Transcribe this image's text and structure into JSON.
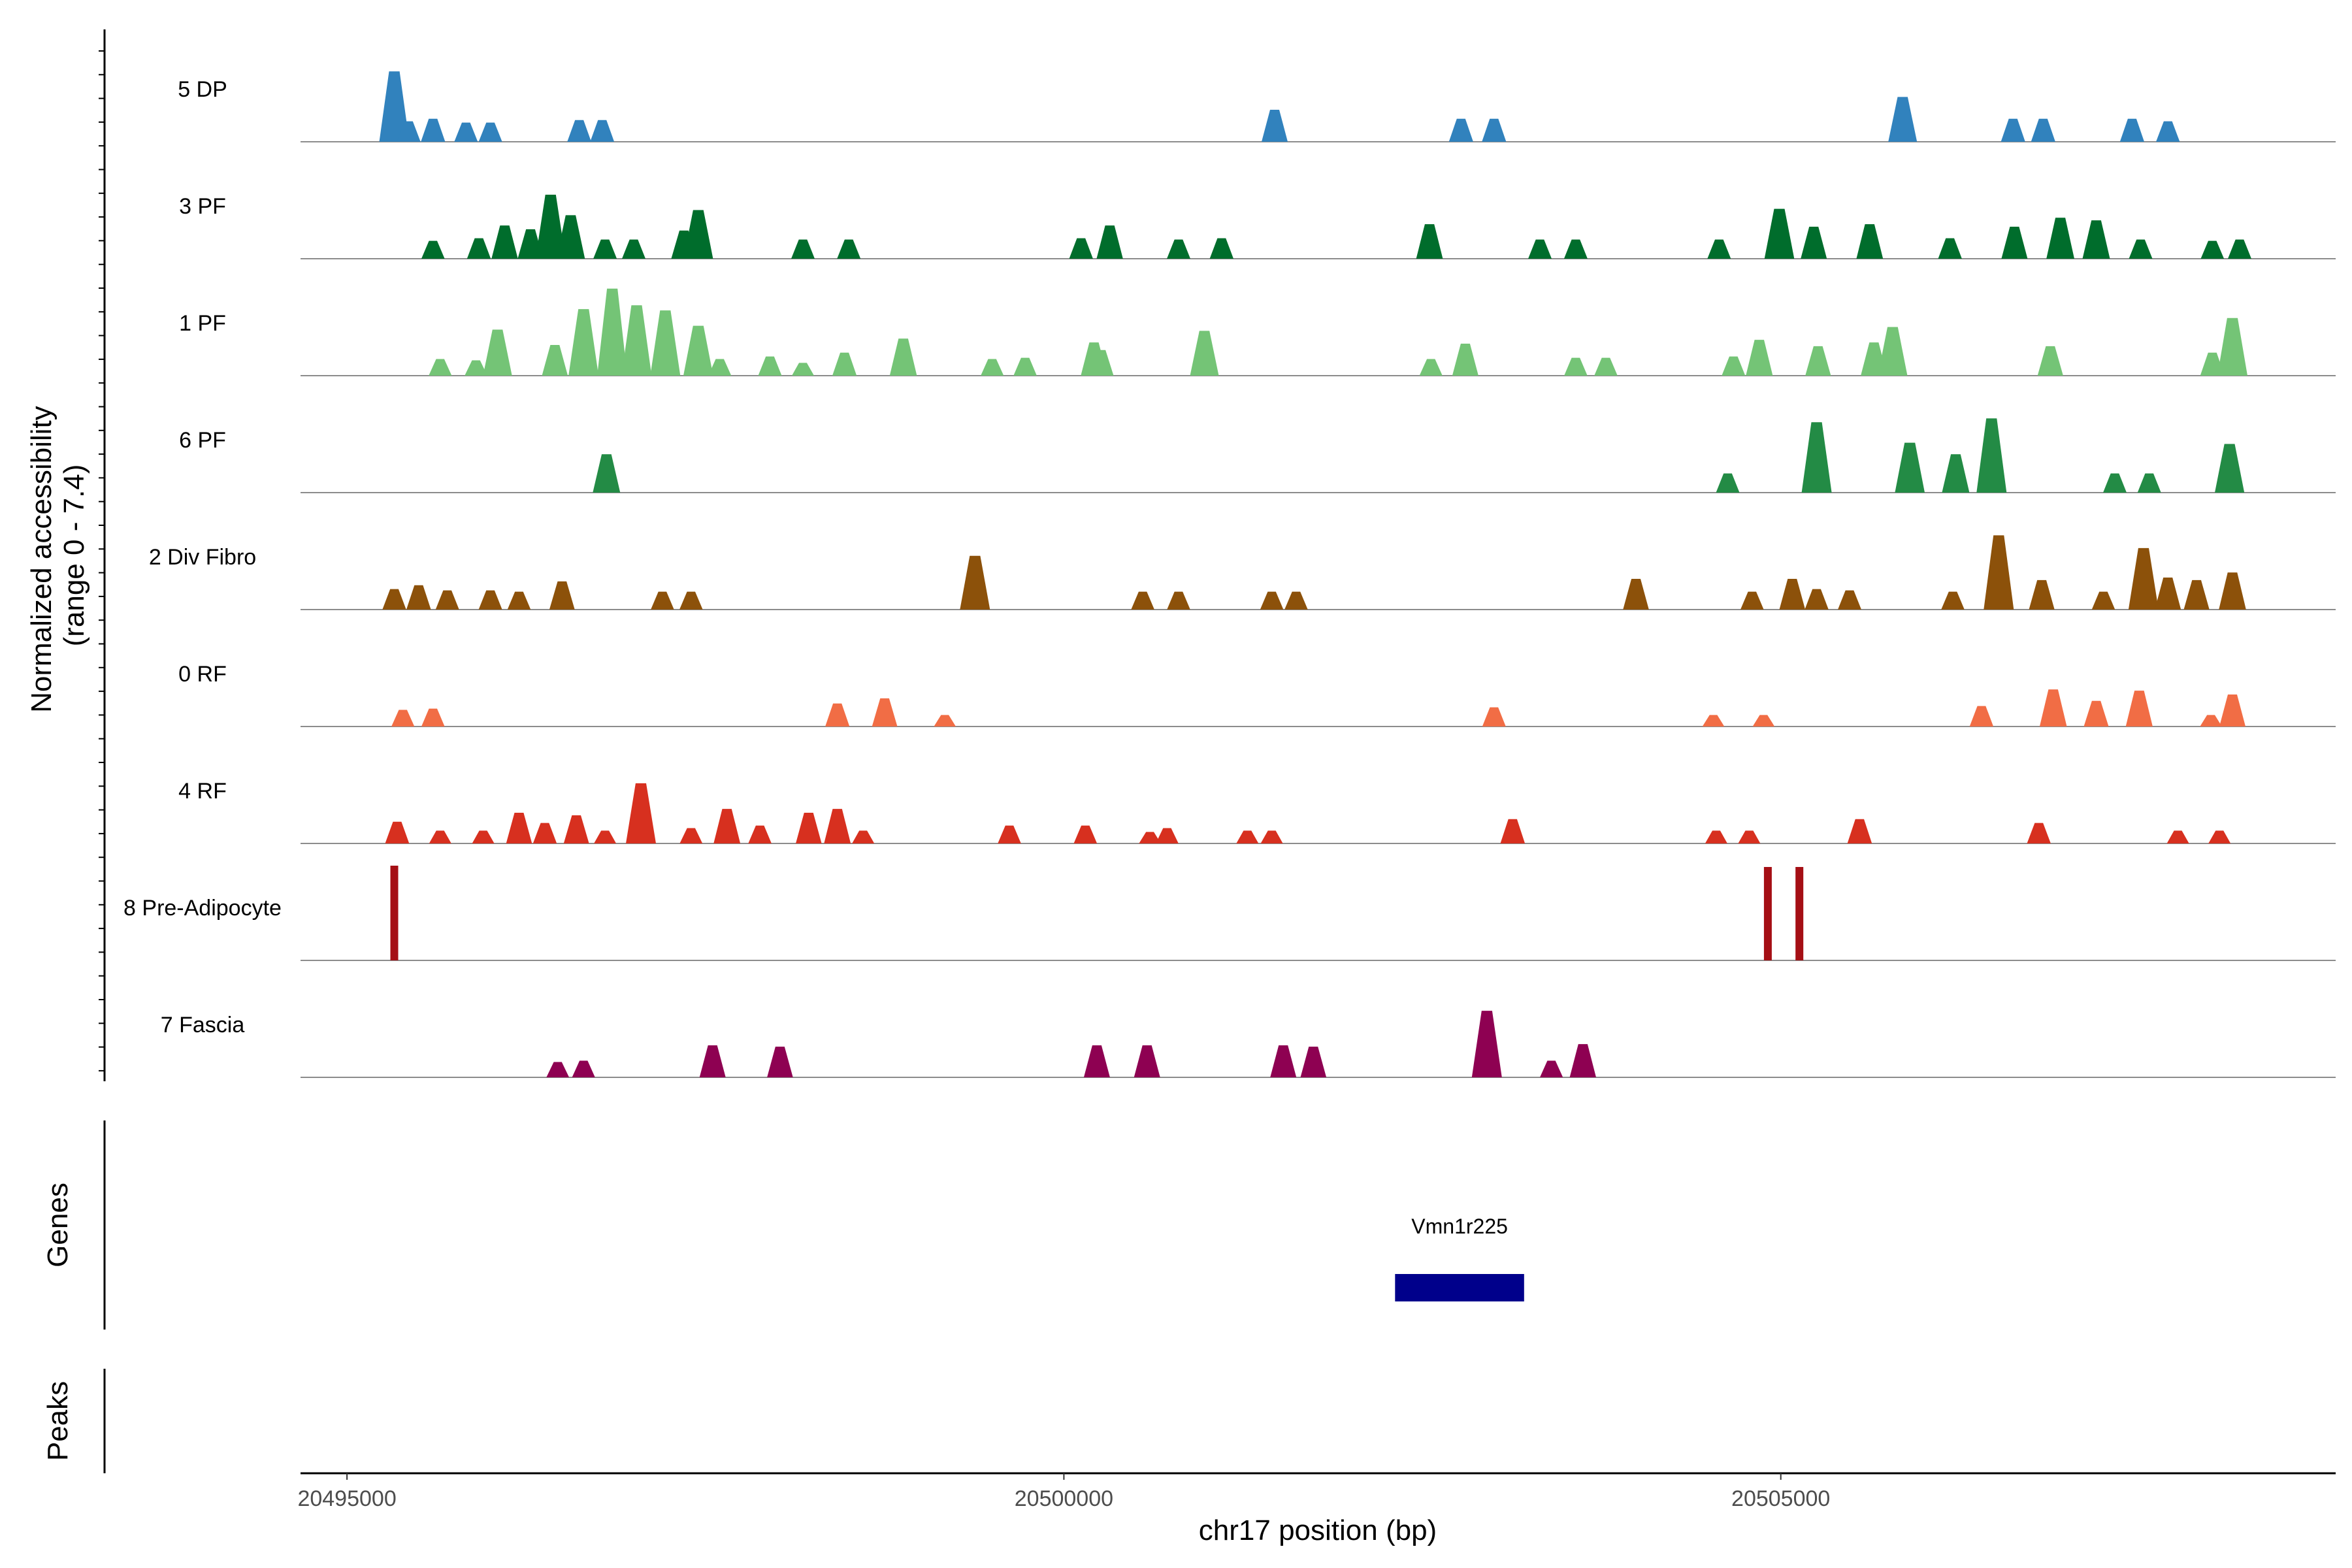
{
  "chart_data": {
    "type": "area",
    "title": "",
    "xlabel": "chr17 position (bp)",
    "ylabel": "Normalized accessibility\n(range 0 - 7.4)",
    "y_range": [
      0,
      7.4
    ],
    "x_range": [
      20494676,
      20508870
    ],
    "x_ticks": [
      20495000,
      20500000,
      20505000
    ],
    "x_tick_labels": [
      "20495000",
      "20500000",
      "20505000"
    ],
    "genes_label": "Genes",
    "peaks_label": "Peaks",
    "genes": [
      {
        "name": "Vmn1r225",
        "start": 20502310,
        "end": 20503210,
        "color": "#00008B"
      }
    ],
    "series": [
      {
        "name": "5 DP",
        "color": "#3182BD",
        "points": [
          [
            20495330,
            5.5
          ],
          [
            20495430,
            1.6
          ],
          [
            20495600,
            1.8
          ],
          [
            20495830,
            1.5
          ],
          [
            20496000,
            1.5
          ],
          [
            20496620,
            1.7
          ],
          [
            20496780,
            1.7
          ],
          [
            20501470,
            2.5
          ],
          [
            20502770,
            1.8
          ],
          [
            20503000,
            1.8
          ],
          [
            20505850,
            3.5
          ],
          [
            20506620,
            1.8
          ],
          [
            20506830,
            1.8
          ],
          [
            20507450,
            1.8
          ],
          [
            20507700,
            1.6
          ]
        ]
      },
      {
        "name": "3 PF",
        "color": "#006D2C",
        "points": [
          [
            20495600,
            1.4
          ],
          [
            20495920,
            1.6
          ],
          [
            20496100,
            2.6
          ],
          [
            20496280,
            2.3
          ],
          [
            20496420,
            5.0
          ],
          [
            20496560,
            3.4
          ],
          [
            20496800,
            1.5
          ],
          [
            20497000,
            1.5
          ],
          [
            20497350,
            2.2
          ],
          [
            20497450,
            3.8
          ],
          [
            20498180,
            1.5
          ],
          [
            20498500,
            1.5
          ],
          [
            20500120,
            1.6
          ],
          [
            20500320,
            2.6
          ],
          [
            20500800,
            1.5
          ],
          [
            20501100,
            1.6
          ],
          [
            20502550,
            2.7
          ],
          [
            20503320,
            1.5
          ],
          [
            20503570,
            1.5
          ],
          [
            20504570,
            1.5
          ],
          [
            20504990,
            3.9
          ],
          [
            20505230,
            2.5
          ],
          [
            20505620,
            2.7
          ],
          [
            20506180,
            1.6
          ],
          [
            20506630,
            2.5
          ],
          [
            20506950,
            3.2
          ],
          [
            20507200,
            3.0
          ],
          [
            20507510,
            1.5
          ],
          [
            20508010,
            1.4
          ],
          [
            20508200,
            1.5
          ]
        ]
      },
      {
        "name": "1 PF",
        "color": "#74C476",
        "points": [
          [
            20495650,
            1.3
          ],
          [
            20495900,
            1.2
          ],
          [
            20496050,
            3.6
          ],
          [
            20496450,
            2.4
          ],
          [
            20496650,
            5.2
          ],
          [
            20496850,
            6.8
          ],
          [
            20497020,
            5.5
          ],
          [
            20497220,
            5.1
          ],
          [
            20497450,
            3.9
          ],
          [
            20497600,
            1.3
          ],
          [
            20497950,
            1.5
          ],
          [
            20498180,
            1.0
          ],
          [
            20498470,
            1.8
          ],
          [
            20498880,
            2.9
          ],
          [
            20499500,
            1.3
          ],
          [
            20499730,
            1.4
          ],
          [
            20500210,
            2.6
          ],
          [
            20500260,
            2.0
          ],
          [
            20500980,
            3.5
          ],
          [
            20502560,
            1.3
          ],
          [
            20502800,
            2.5
          ],
          [
            20503570,
            1.4
          ],
          [
            20503780,
            1.4
          ],
          [
            20504670,
            1.5
          ],
          [
            20504850,
            2.8
          ],
          [
            20505260,
            2.3
          ],
          [
            20505650,
            2.6
          ],
          [
            20505780,
            3.8
          ],
          [
            20506880,
            2.3
          ],
          [
            20508010,
            1.8
          ],
          [
            20508150,
            4.5
          ]
        ]
      },
      {
        "name": "6 PF",
        "color": "#238B45",
        "points": [
          [
            20496810,
            3.0
          ],
          [
            20504630,
            1.5
          ],
          [
            20505250,
            5.5
          ],
          [
            20505900,
            3.9
          ],
          [
            20506220,
            3.0
          ],
          [
            20506470,
            5.8
          ],
          [
            20507330,
            1.5
          ],
          [
            20507570,
            1.5
          ],
          [
            20508130,
            3.8
          ]
        ]
      },
      {
        "name": "2 Div Fibro",
        "color": "#8C510A",
        "points": [
          [
            20495330,
            1.6
          ],
          [
            20495500,
            1.9
          ],
          [
            20495700,
            1.5
          ],
          [
            20496000,
            1.5
          ],
          [
            20496200,
            1.4
          ],
          [
            20496500,
            2.2
          ],
          [
            20497200,
            1.4
          ],
          [
            20497400,
            1.4
          ],
          [
            20499380,
            4.2
          ],
          [
            20500550,
            1.4
          ],
          [
            20500800,
            1.4
          ],
          [
            20501450,
            1.4
          ],
          [
            20501620,
            1.4
          ],
          [
            20503990,
            2.4
          ],
          [
            20504800,
            1.4
          ],
          [
            20505080,
            2.4
          ],
          [
            20505250,
            1.6
          ],
          [
            20505480,
            1.5
          ],
          [
            20506200,
            1.4
          ],
          [
            20506520,
            5.8
          ],
          [
            20506820,
            2.3
          ],
          [
            20507250,
            1.4
          ],
          [
            20507530,
            4.8
          ],
          [
            20507700,
            2.5
          ],
          [
            20507900,
            2.3
          ],
          [
            20508150,
            2.9
          ]
        ]
      },
      {
        "name": "0 RF",
        "color": "#F16D45",
        "points": [
          [
            20495390,
            1.3
          ],
          [
            20495600,
            1.4
          ],
          [
            20498420,
            1.8
          ],
          [
            20498750,
            2.2
          ],
          [
            20499170,
            0.9
          ],
          [
            20503000,
            1.5
          ],
          [
            20504530,
            0.9
          ],
          [
            20504880,
            0.9
          ],
          [
            20506400,
            1.6
          ],
          [
            20506900,
            2.9
          ],
          [
            20507200,
            2.0
          ],
          [
            20507500,
            2.8
          ],
          [
            20508000,
            0.9
          ],
          [
            20508150,
            2.5
          ]
        ]
      },
      {
        "name": "4 RF",
        "color": "#D7301F",
        "points": [
          [
            20495350,
            1.7
          ],
          [
            20495650,
            1.0
          ],
          [
            20495950,
            1.0
          ],
          [
            20496200,
            2.4
          ],
          [
            20496380,
            1.6
          ],
          [
            20496600,
            2.2
          ],
          [
            20496800,
            1.0
          ],
          [
            20497050,
            4.7
          ],
          [
            20497400,
            1.2
          ],
          [
            20497650,
            2.7
          ],
          [
            20497880,
            1.4
          ],
          [
            20498220,
            2.4
          ],
          [
            20498420,
            2.7
          ],
          [
            20498600,
            1.0
          ],
          [
            20499620,
            1.4
          ],
          [
            20500150,
            1.4
          ],
          [
            20500600,
            0.9
          ],
          [
            20500720,
            1.2
          ],
          [
            20501280,
            1.0
          ],
          [
            20501450,
            1.0
          ],
          [
            20503130,
            1.9
          ],
          [
            20504550,
            1.0
          ],
          [
            20504780,
            1.0
          ],
          [
            20505550,
            1.9
          ],
          [
            20506800,
            1.6
          ],
          [
            20507770,
            1.0
          ],
          [
            20508060,
            1.0
          ]
        ]
      },
      {
        "name": "8 Pre-Adipocyte",
        "color": "#A50F15",
        "points": [
          [
            20495330,
            7.4
          ],
          [
            20504910,
            7.3
          ],
          [
            20505130,
            7.3
          ]
        ]
      },
      {
        "name": "7 Fascia",
        "color": "#8E0152",
        "points": [
          [
            20496470,
            1.2
          ],
          [
            20496650,
            1.3
          ],
          [
            20497550,
            2.5
          ],
          [
            20498020,
            2.4
          ],
          [
            20500230,
            2.5
          ],
          [
            20500580,
            2.5
          ],
          [
            20501530,
            2.5
          ],
          [
            20501740,
            2.4
          ],
          [
            20502950,
            5.2
          ],
          [
            20503400,
            1.3
          ],
          [
            20503620,
            2.6
          ]
        ]
      }
    ]
  }
}
